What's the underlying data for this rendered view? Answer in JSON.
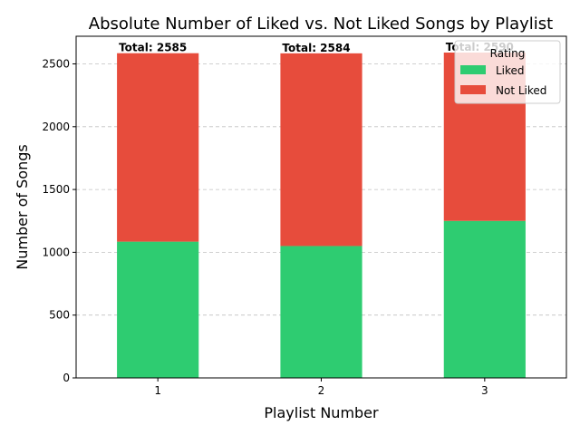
{
  "chart_data": {
    "type": "bar",
    "stacked": true,
    "title": "Absolute Number of Liked vs. Not Liked Songs by Playlist",
    "xlabel": "Playlist Number",
    "ylabel": "Number of Songs",
    "categories": [
      "1",
      "2",
      "3"
    ],
    "series": [
      {
        "name": "Liked",
        "values": [
          1085,
          1050,
          1250
        ],
        "color": "#2ecc71"
      },
      {
        "name": "Not Liked",
        "values": [
          1500,
          1534,
          1340
        ],
        "color": "#e74c3c"
      }
    ],
    "totals": [
      "Total: 2585",
      "Total: 2584",
      "Total: 2590"
    ],
    "ylim": [
      0,
      2720
    ],
    "yticks": [
      0,
      500,
      1000,
      1500,
      2000,
      2500
    ],
    "grid": "y-dashed",
    "legend": {
      "title": "Rating",
      "placement": "top-right"
    }
  }
}
